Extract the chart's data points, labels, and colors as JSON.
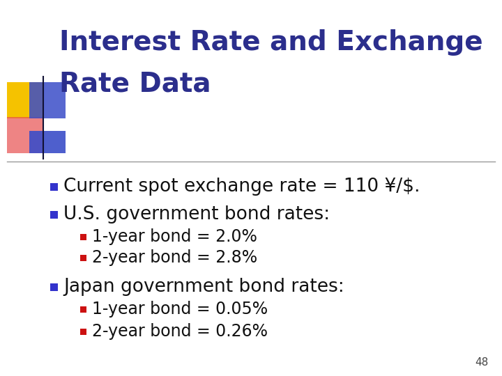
{
  "title_line1": "Interest Rate and Exchange",
  "title_line2": "Rate Data",
  "title_color": "#2B2E8C",
  "background_color": "#FFFFFF",
  "slide_number": "48",
  "bullet_color": "#3333CC",
  "sub_bullet_color": "#CC1111",
  "text_color": "#111111",
  "divider_line_color": "#999999",
  "title_font_size": 28,
  "bullet_font_size": 19,
  "sub_bullet_font_size": 17,
  "bullet_items": [
    {
      "level": 1,
      "text": "Current spot exchange rate = 110 ¥/$."
    },
    {
      "level": 1,
      "text": "U.S. government bond rates:"
    },
    {
      "level": 2,
      "text": "1-year bond = 2.0%"
    },
    {
      "level": 2,
      "text": "2-year bond = 2.8%"
    },
    {
      "level": 1,
      "text": "Japan government bond rates:"
    },
    {
      "level": 2,
      "text": "1-year bond = 0.05%"
    },
    {
      "level": 2,
      "text": "2-year bond = 0.26%"
    }
  ]
}
